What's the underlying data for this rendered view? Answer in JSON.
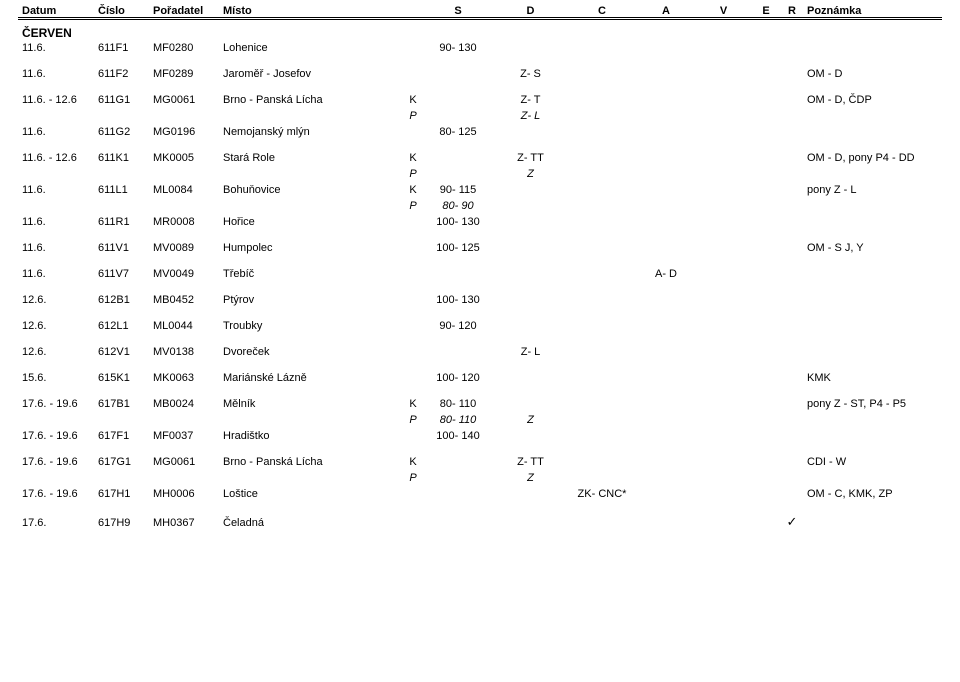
{
  "headers": {
    "datum": "Datum",
    "cislo": "Číslo",
    "poradatel": "Pořadatel",
    "misto": "Místo",
    "s": "S",
    "d": "D",
    "c": "C",
    "a": "A",
    "v": "V",
    "e": "E",
    "r": "R",
    "poznamka": "Poznámka"
  },
  "month": "ČERVEN",
  "tick_glyph": "✓",
  "rows": [
    {
      "datum": "11.6.",
      "cislo": "611F1",
      "poradatel": "MF0280",
      "misto": "Lohenice",
      "kp": "",
      "s": "90- 130",
      "d": "",
      "c": "",
      "a": "",
      "v": "",
      "e": "",
      "r": "",
      "pozn": "",
      "gap_after": true
    },
    {
      "datum": "11.6.",
      "cislo": "611F2",
      "poradatel": "MF0289",
      "misto": "Jaroměř - Josefov",
      "kp": "",
      "s": "",
      "d": "Z- S",
      "c": "",
      "a": "",
      "v": "",
      "e": "",
      "r": "",
      "pozn": "OM - D",
      "gap_after": true
    },
    {
      "datum": "11.6. - 12.6",
      "cislo": "611G1",
      "poradatel": "MG0061",
      "misto": "Brno - Panská Lícha",
      "kp": "K",
      "s": "",
      "d": "Z- T",
      "c": "",
      "a": "",
      "v": "",
      "e": "",
      "r": "",
      "pozn": "OM - D, ČDP"
    },
    {
      "datum": "",
      "cislo": "",
      "poradatel": "",
      "misto": "",
      "kp": "P",
      "kp_ital": true,
      "s": "",
      "d": "Z- L",
      "d_ital": true,
      "c": "",
      "a": "",
      "v": "",
      "e": "",
      "r": "",
      "pozn": ""
    },
    {
      "datum": "11.6.",
      "cislo": "611G2",
      "poradatel": "MG0196",
      "misto": "Nemojanský mlýn",
      "kp": "",
      "s": "80- 125",
      "d": "",
      "c": "",
      "a": "",
      "v": "",
      "e": "",
      "r": "",
      "pozn": "",
      "gap_after": true
    },
    {
      "datum": "11.6. - 12.6",
      "cislo": "611K1",
      "poradatel": "MK0005",
      "misto": "Stará Role",
      "kp": "K",
      "s": "",
      "d": "Z- TT",
      "c": "",
      "a": "",
      "v": "",
      "e": "",
      "r": "",
      "pozn": "OM - D, pony P4 - DD"
    },
    {
      "datum": "",
      "cislo": "",
      "poradatel": "",
      "misto": "",
      "kp": "P",
      "kp_ital": true,
      "s": "",
      "d": "Z",
      "d_ital": true,
      "c": "",
      "a": "",
      "v": "",
      "e": "",
      "r": "",
      "pozn": ""
    },
    {
      "datum": "11.6.",
      "cislo": "611L1",
      "poradatel": "ML0084",
      "misto": "Bohuňovice",
      "kp": "K",
      "s": "90- 115",
      "d": "",
      "c": "",
      "a": "",
      "v": "",
      "e": "",
      "r": "",
      "pozn": "pony Z - L"
    },
    {
      "datum": "",
      "cislo": "",
      "poradatel": "",
      "misto": "",
      "kp": "P",
      "kp_ital": true,
      "s": "80- 90",
      "s_ital": true,
      "d": "",
      "c": "",
      "a": "",
      "v": "",
      "e": "",
      "r": "",
      "pozn": ""
    },
    {
      "datum": "11.6.",
      "cislo": "611R1",
      "poradatel": "MR0008",
      "misto": "Hořice",
      "kp": "",
      "s": "100- 130",
      "d": "",
      "c": "",
      "a": "",
      "v": "",
      "e": "",
      "r": "",
      "pozn": "",
      "gap_after": true
    },
    {
      "datum": "11.6.",
      "cislo": "611V1",
      "poradatel": "MV0089",
      "misto": "Humpolec",
      "kp": "",
      "s": "100- 125",
      "d": "",
      "c": "",
      "a": "",
      "v": "",
      "e": "",
      "r": "",
      "pozn": "OM - S J, Y",
      "gap_after": true
    },
    {
      "datum": "11.6.",
      "cislo": "611V7",
      "poradatel": "MV0049",
      "misto": "Třebíč",
      "kp": "",
      "s": "",
      "d": "",
      "c": "",
      "a": "A- D",
      "v": "",
      "e": "",
      "r": "",
      "pozn": "",
      "gap_after": true
    },
    {
      "datum": "12.6.",
      "cislo": "612B1",
      "poradatel": "MB0452",
      "misto": "Ptýrov",
      "kp": "",
      "s": "100- 130",
      "d": "",
      "c": "",
      "a": "",
      "v": "",
      "e": "",
      "r": "",
      "pozn": "",
      "gap_after": true
    },
    {
      "datum": "12.6.",
      "cislo": "612L1",
      "poradatel": "ML0044",
      "misto": "Troubky",
      "kp": "",
      "s": "90- 120",
      "d": "",
      "c": "",
      "a": "",
      "v": "",
      "e": "",
      "r": "",
      "pozn": "",
      "gap_after": true
    },
    {
      "datum": "12.6.",
      "cislo": "612V1",
      "poradatel": "MV0138",
      "misto": "Dvoreček",
      "kp": "",
      "s": "",
      "d": "Z- L",
      "c": "",
      "a": "",
      "v": "",
      "e": "",
      "r": "",
      "pozn": "",
      "gap_after": true
    },
    {
      "datum": "15.6.",
      "cislo": "615K1",
      "poradatel": "MK0063",
      "misto": "Mariánské Lázně",
      "kp": "",
      "s": "100- 120",
      "d": "",
      "c": "",
      "a": "",
      "v": "",
      "e": "",
      "r": "",
      "pozn": "KMK",
      "gap_after": true
    },
    {
      "datum": "17.6. - 19.6",
      "cislo": "617B1",
      "poradatel": "MB0024",
      "misto": "Mělník",
      "kp": "K",
      "s": "80- 110",
      "d": "",
      "c": "",
      "a": "",
      "v": "",
      "e": "",
      "r": "",
      "pozn": "pony Z - ST, P4 - P5"
    },
    {
      "datum": "",
      "cislo": "",
      "poradatel": "",
      "misto": "",
      "kp": "P",
      "kp_ital": true,
      "s": "80- 110",
      "s_ital": true,
      "d": "Z",
      "d_ital": true,
      "c": "",
      "a": "",
      "v": "",
      "e": "",
      "r": "",
      "pozn": ""
    },
    {
      "datum": "17.6. - 19.6",
      "cislo": "617F1",
      "poradatel": "MF0037",
      "misto": "Hradištko",
      "kp": "",
      "s": "100- 140",
      "d": "",
      "c": "",
      "a": "",
      "v": "",
      "e": "",
      "r": "",
      "pozn": "",
      "gap_after": true
    },
    {
      "datum": "17.6. - 19.6",
      "cislo": "617G1",
      "poradatel": "MG0061",
      "misto": "Brno - Panská Lícha",
      "kp": "K",
      "s": "",
      "d": "Z- TT",
      "c": "",
      "a": "",
      "v": "",
      "e": "",
      "r": "",
      "pozn": "CDI - W"
    },
    {
      "datum": "",
      "cislo": "",
      "poradatel": "",
      "misto": "",
      "kp": "P",
      "kp_ital": true,
      "s": "",
      "d": "Z",
      "d_ital": true,
      "c": "",
      "a": "",
      "v": "",
      "e": "",
      "r": "",
      "pozn": ""
    },
    {
      "datum": "17.6. - 19.6",
      "cislo": "617H1",
      "poradatel": "MH0006",
      "misto": "Loštice",
      "kp": "",
      "s": "",
      "d": "",
      "c": "ZK- CNC*",
      "a": "",
      "v": "",
      "e": "",
      "r": "",
      "pozn": "OM - C, KMK, ZP",
      "gap_after": true
    },
    {
      "datum": "17.6.",
      "cislo": "617H9",
      "poradatel": "MH0367",
      "misto": "Čeladná",
      "kp": "",
      "s": "",
      "d": "",
      "c": "",
      "a": "",
      "v": "",
      "e": "",
      "r": "tick",
      "pozn": ""
    }
  ]
}
